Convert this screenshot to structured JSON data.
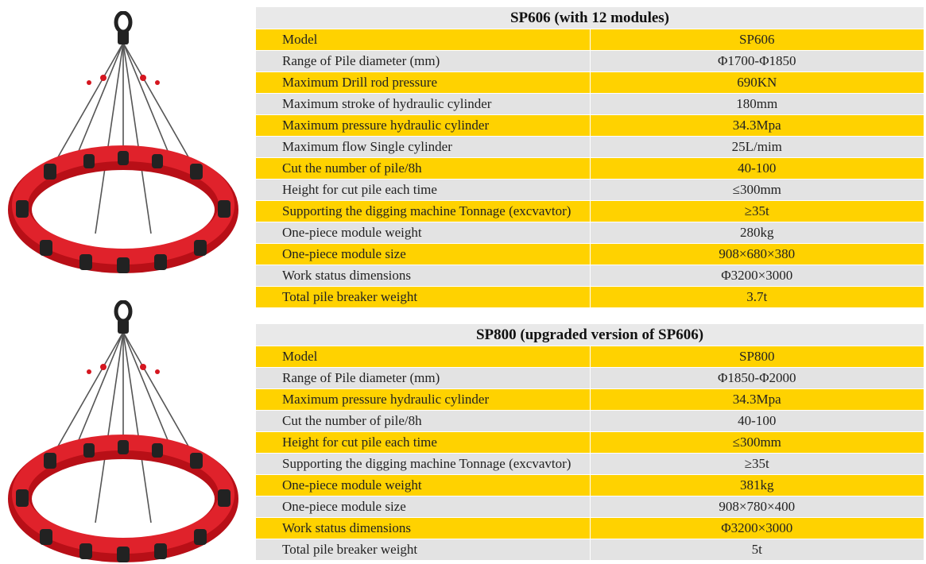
{
  "tables": [
    {
      "title": "SP606 (with 12 modules)",
      "rows": [
        {
          "label": "Model",
          "value": "SP606"
        },
        {
          "label": "Range of Pile diameter (mm)",
          "value": "Φ1700-Φ1850"
        },
        {
          "label": "Maximum Drill rod pressure",
          "value": "690KN"
        },
        {
          "label": "Maximum stroke of hydraulic cylinder",
          "value": "180mm"
        },
        {
          "label": "Maximum pressure hydraulic cylinder",
          "value": "34.3Mpa"
        },
        {
          "label": "Maximum flow Single cylinder",
          "value": "25L/mim"
        },
        {
          "label": "Cut the number of pile/8h",
          "value": "40-100"
        },
        {
          "label": "Height for cut pile each time",
          "value": "≤300mm"
        },
        {
          "label": "Supporting the digging machine Tonnage (excvavtor)",
          "value": "≥35t"
        },
        {
          "label": "One-piece module weight",
          "value": "280kg"
        },
        {
          "label": "One-piece module size",
          "value": "908×680×380"
        },
        {
          "label": "Work status dimensions",
          "value": "Φ3200×3000"
        },
        {
          "label": "Total pile breaker weight",
          "value": "3.7t"
        }
      ]
    },
    {
      "title": "SP800 (upgraded version of SP606)",
      "rows": [
        {
          "label": "Model",
          "value": "SP800"
        },
        {
          "label": "Range of Pile diameter (mm)",
          "value": "Φ1850-Φ2000"
        },
        {
          "label": "Maximum pressure hydraulic cylinder",
          "value": "34.3Mpa"
        },
        {
          "label": "Cut the number of pile/8h",
          "value": "40-100"
        },
        {
          "label": "Height for cut pile each time",
          "value": "≤300mm"
        },
        {
          "label": "Supporting the digging machine Tonnage (excvavtor)",
          "value": "≥35t"
        },
        {
          "label": "One-piece module weight",
          "value": "381kg"
        },
        {
          "label": "One-piece module size",
          "value": "908×780×400"
        },
        {
          "label": "Work status dimensions",
          "value": "Φ3200×3000"
        },
        {
          "label": "Total pile breaker weight",
          "value": "5t"
        }
      ]
    }
  ],
  "colors": {
    "row_yellow": "#ffd200",
    "row_gray": "#e3e3e3",
    "header_gray": "#e9e9e9",
    "breaker_red": "#d5161f"
  }
}
